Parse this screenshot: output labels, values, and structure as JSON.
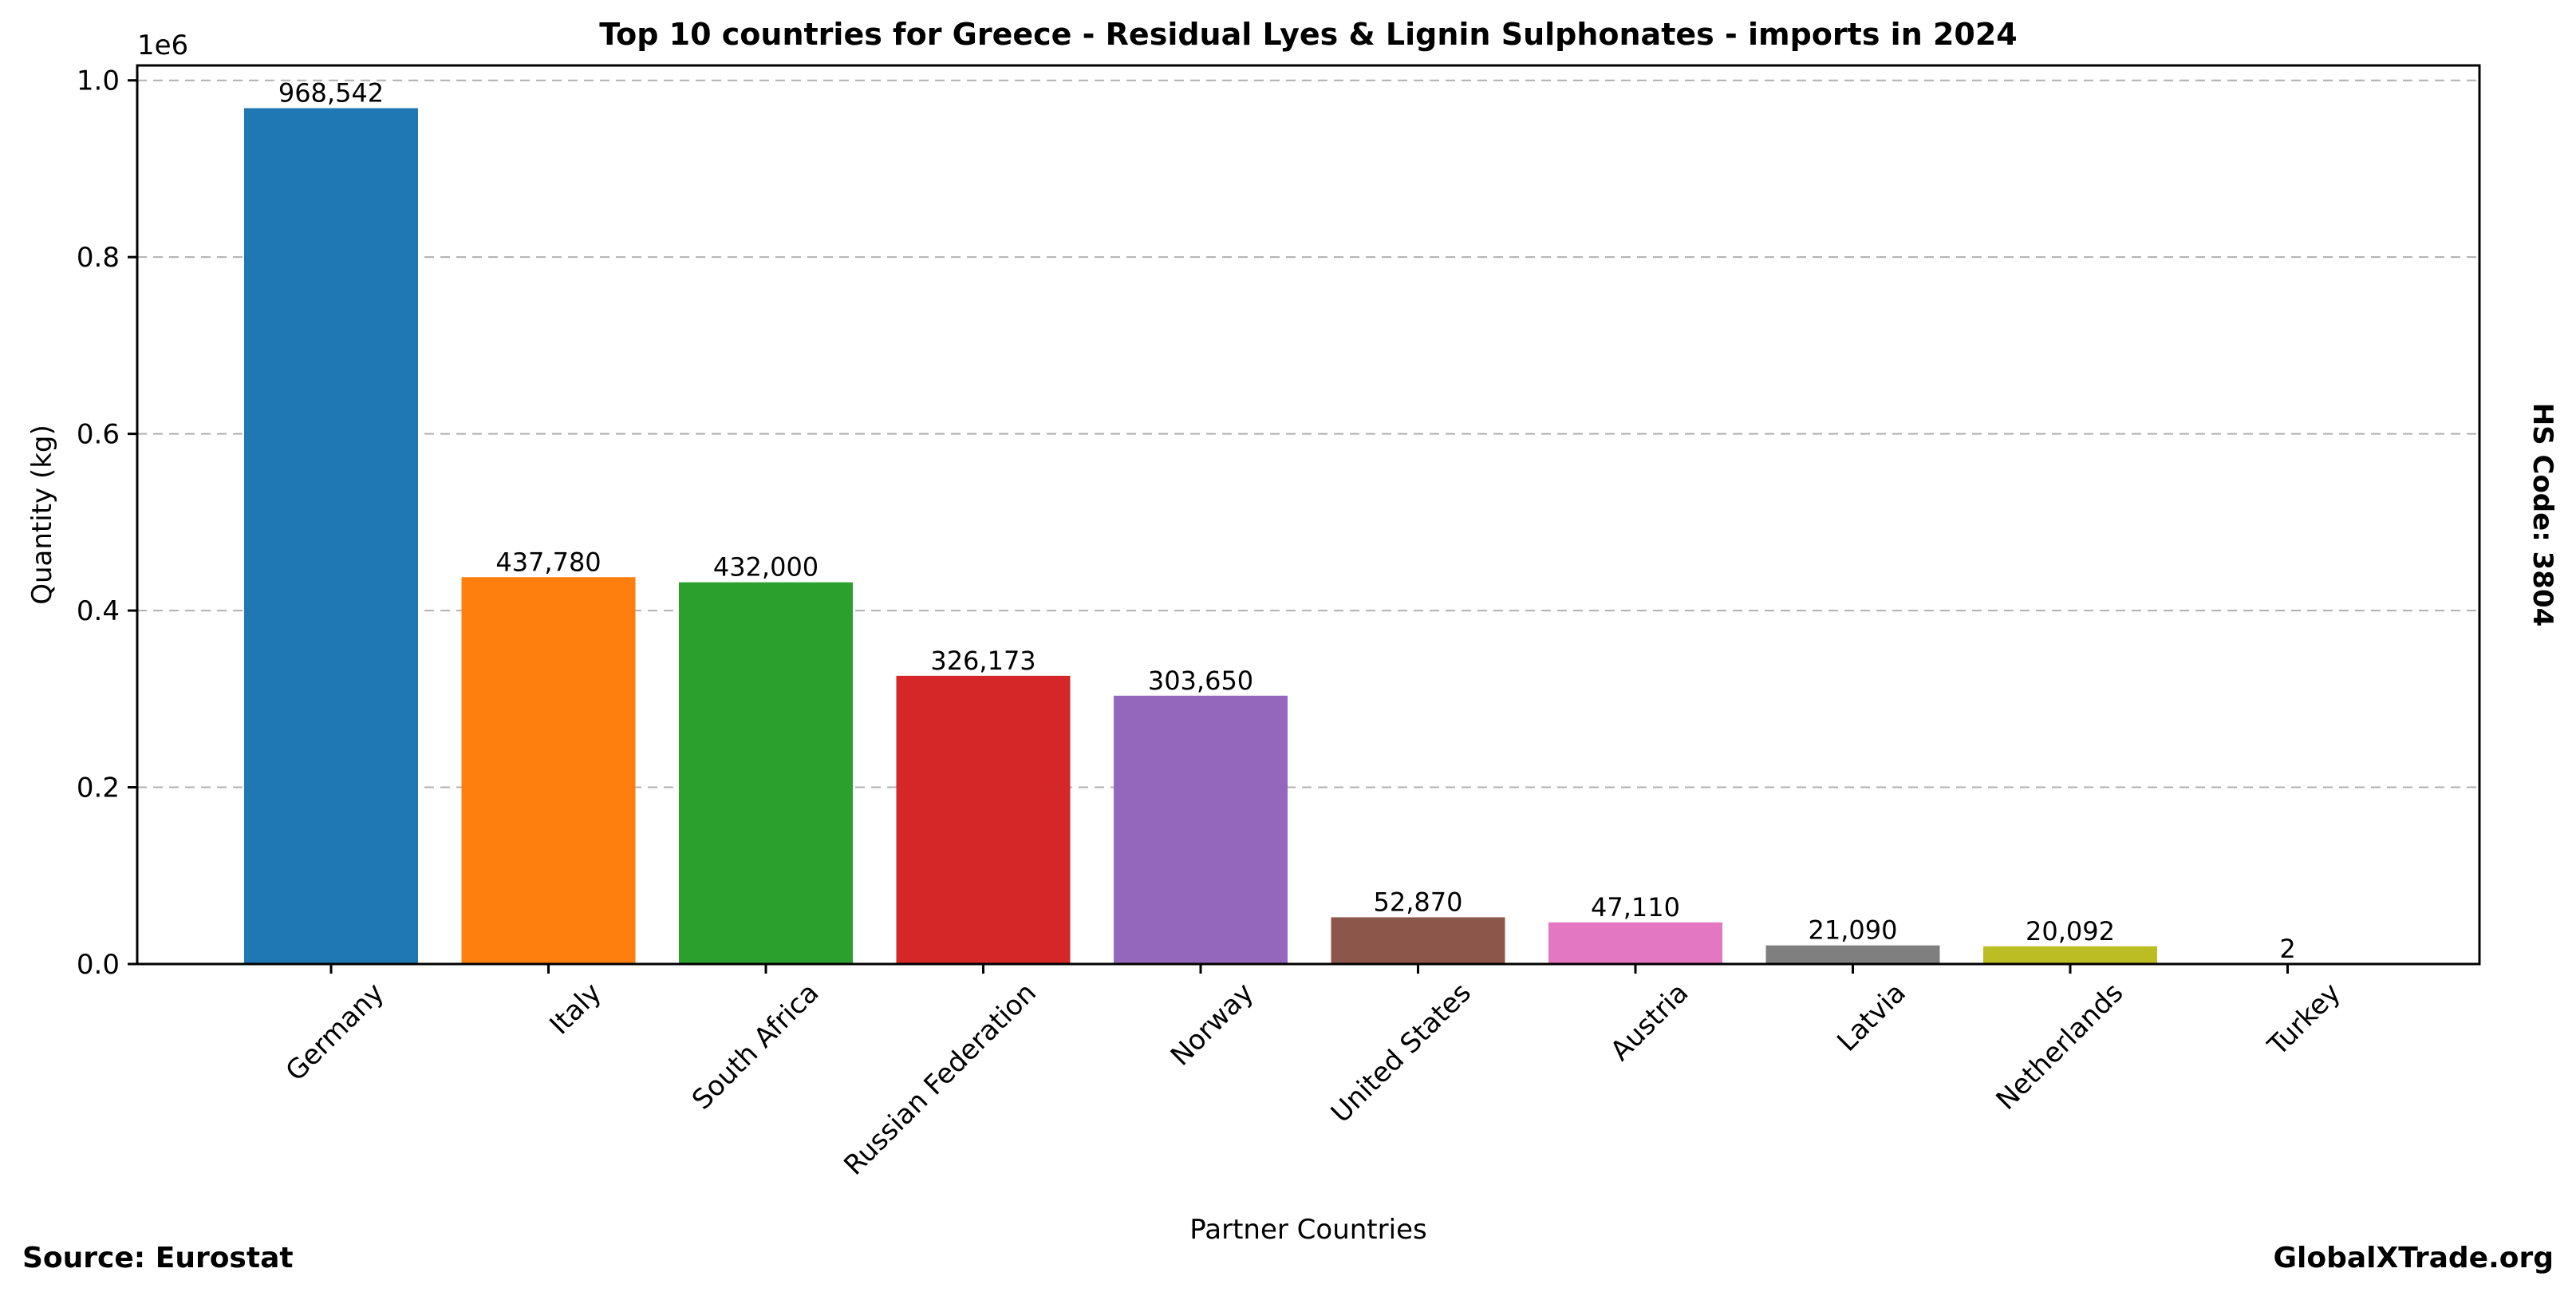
{
  "chart_data": {
    "type": "bar",
    "title": "Top 10 countries for Greece - Residual Lyes & Lignin Sulphonates - imports in 2024",
    "xlabel": "Partner Countries",
    "ylabel": "Quantity (kg)",
    "y_offset_label": "1e6",
    "side_label": "HS Code: 3804",
    "categories": [
      "Germany",
      "Italy",
      "South Africa",
      "Russian Federation",
      "Norway",
      "United States",
      "Austria",
      "Latvia",
      "Netherlands",
      "Turkey"
    ],
    "values": [
      968542,
      437780,
      432000,
      326173,
      303650,
      52870,
      47110,
      21090,
      20092,
      2
    ],
    "value_labels": [
      "968,542",
      "437,780",
      "432,000",
      "326,173",
      "303,650",
      "52,870",
      "47,110",
      "21,090",
      "20,092",
      "2"
    ],
    "colors": [
      "#1f77b4",
      "#ff7f0e",
      "#2ca02c",
      "#d62728",
      "#9467bd",
      "#8c564b",
      "#e377c2",
      "#7f7f7f",
      "#bcbd22",
      "#17becf"
    ],
    "yticks": [
      0,
      0.2,
      0.4,
      0.6,
      0.8,
      1.0
    ],
    "ytick_labels": [
      "0.0",
      "0.2",
      "0.4",
      "0.6",
      "0.8",
      "1.0"
    ],
    "ylim": [
      0,
      1.0169
    ],
    "grid": true,
    "grid_color": "#b0b0b0"
  },
  "footer": {
    "source": "Source: Eurostat",
    "brand": "GlobalXTrade.org"
  }
}
